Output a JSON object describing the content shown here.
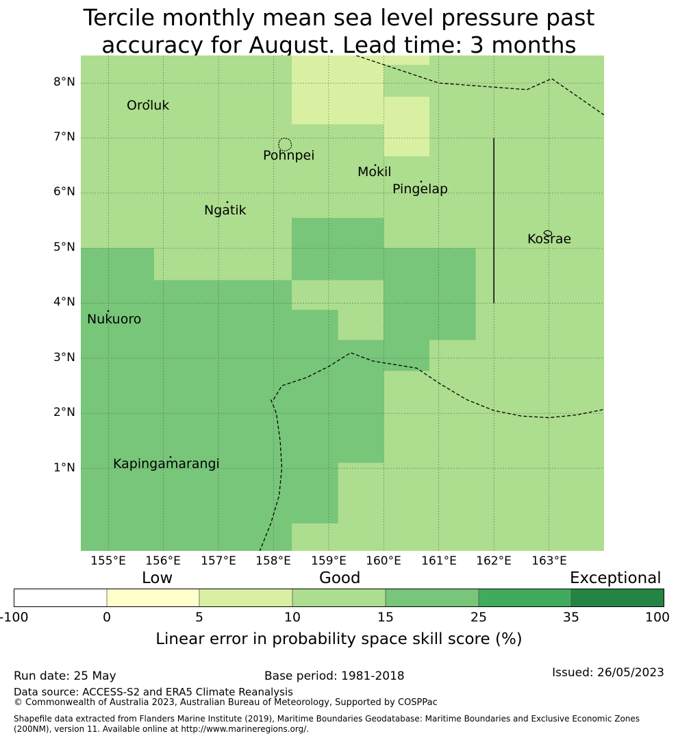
{
  "title_line1": "Tercile monthly mean sea level pressure past",
  "title_line2": "accuracy for August. Lead time: 3 months",
  "colors": {
    "white": "#ffffff",
    "low": "#ffffcc",
    "fair": "#d9f0a3",
    "good": "#addd8e",
    "vgood": "#78c679",
    "great": "#41ab5d",
    "exceptional": "#238443"
  },
  "lat_ticks": [
    "8°N",
    "7°N",
    "6°N",
    "5°N",
    "4°N",
    "3°N",
    "2°N",
    "1°N"
  ],
  "lon_ticks": [
    "155°E",
    "156°E",
    "157°E",
    "158°E",
    "159°E",
    "160°E",
    "161°E",
    "162°E",
    "163°E"
  ],
  "places": [
    "Oroluk",
    "Pohnpei",
    "Mokil",
    "Pingelap",
    "Ngatik",
    "Kosrae",
    "Nukuoro",
    "Kapingamarangi"
  ],
  "map_data": {
    "extent": {
      "lon": [
        154.5,
        164.0
      ],
      "lat": [
        -0.5,
        8.5
      ]
    },
    "score_field": [
      {
        "lon": [
          154.5,
          158.33
        ],
        "lat": [
          7.33,
          8.5
        ],
        "class": "good"
      },
      {
        "lon": [
          158.33,
          160.0
        ],
        "lat": [
          7.25,
          8.5
        ],
        "class": "fair"
      },
      {
        "lon": [
          160.0,
          160.83
        ],
        "lat": [
          8.33,
          8.5
        ],
        "class": "fair"
      },
      {
        "lon": [
          160.0,
          160.83
        ],
        "lat": [
          6.67,
          7.75
        ],
        "class": "fair"
      },
      {
        "lon": [
          158.33,
          160.0
        ],
        "lat": [
          4.42,
          5.55
        ],
        "class": "vgood"
      },
      {
        "lon": [
          154.5,
          155.83
        ],
        "lat": [
          -0.5,
          5.0
        ],
        "class": "vgood"
      },
      {
        "lon": [
          155.83,
          158.33
        ],
        "lat": [
          -0.5,
          4.42
        ],
        "class": "vgood"
      },
      {
        "lon": [
          158.33,
          159.17
        ],
        "lat": [
          3.33,
          3.88
        ],
        "class": "good"
      },
      {
        "lon": [
          159.17,
          160.0
        ],
        "lat": [
          3.33,
          3.88
        ],
        "class": "good"
      },
      {
        "lon": [
          158.33,
          159.17
        ],
        "lat": [
          0.0,
          3.88
        ],
        "class": "vgood"
      },
      {
        "lon": [
          159.17,
          160.0
        ],
        "lat": [
          1.1,
          3.33
        ],
        "class": "vgood"
      },
      {
        "lon": [
          158.33,
          159.17
        ],
        "lat": [
          0.0,
          0.52
        ],
        "class": "vgood"
      },
      {
        "lon": [
          160.0,
          161.67
        ],
        "lat": [
          3.33,
          5.0
        ],
        "class": "vgood"
      },
      {
        "lon": [
          160.0,
          160.83
        ],
        "lat": [
          2.77,
          3.33
        ],
        "class": "vgood"
      }
    ],
    "boundary_lines": [
      [
        [
          159.5,
          8.5
        ],
        [
          161.0,
          8.0
        ],
        [
          162.6,
          7.88
        ],
        [
          163.05,
          8.08
        ],
        [
          164.0,
          7.42
        ]
      ],
      [
        [
          158.0,
          2.25
        ],
        [
          158.15,
          2.5
        ],
        [
          158.6,
          2.65
        ],
        [
          159.0,
          2.85
        ],
        [
          159.4,
          3.1
        ],
        [
          159.8,
          2.95
        ],
        [
          160.6,
          2.82
        ],
        [
          161.0,
          2.55
        ],
        [
          161.5,
          2.25
        ],
        [
          162.0,
          2.05
        ],
        [
          162.5,
          1.95
        ],
        [
          163.0,
          1.92
        ],
        [
          163.5,
          1.97
        ],
        [
          164.0,
          2.07
        ]
      ],
      [
        [
          157.95,
          2.25
        ],
        [
          158.05,
          2.0
        ],
        [
          158.12,
          1.5
        ],
        [
          158.15,
          1.0
        ],
        [
          158.1,
          0.5
        ],
        [
          157.95,
          0.0
        ],
        [
          157.75,
          -0.5
        ]
      ]
    ],
    "solid_line": [
      [
        162.0,
        7.0
      ],
      [
        162.0,
        4.0
      ]
    ]
  },
  "colorbar": {
    "categories": [
      "Low",
      "Good",
      "Exceptional"
    ],
    "tick_labels": [
      "-100",
      "0",
      "5",
      "10",
      "15",
      "25",
      "35",
      "100"
    ],
    "title": "Linear error in probability space skill score (%)"
  },
  "footer": {
    "run_date": "Run date: 25 May",
    "base_period": "Base period: 1981-2018",
    "issued": "Issued: 26/05/2023",
    "data_source": "Data source: ACCESS-S2 and ERA5 Climate Reanalysis",
    "copyright": "© Commonwealth of Australia 2023, Australian Bureau of Meteorology, Supported by COSPPac",
    "shapefile_line1": "Shapefile data extracted from Flanders Marine Institute (2019), Maritime Boundaries Geodatabase: Maritime Boundaries and Exclusive Economic Zones",
    "shapefile_line2": "(200NM), version 11. Available online at http://www.marineregions.org/."
  }
}
